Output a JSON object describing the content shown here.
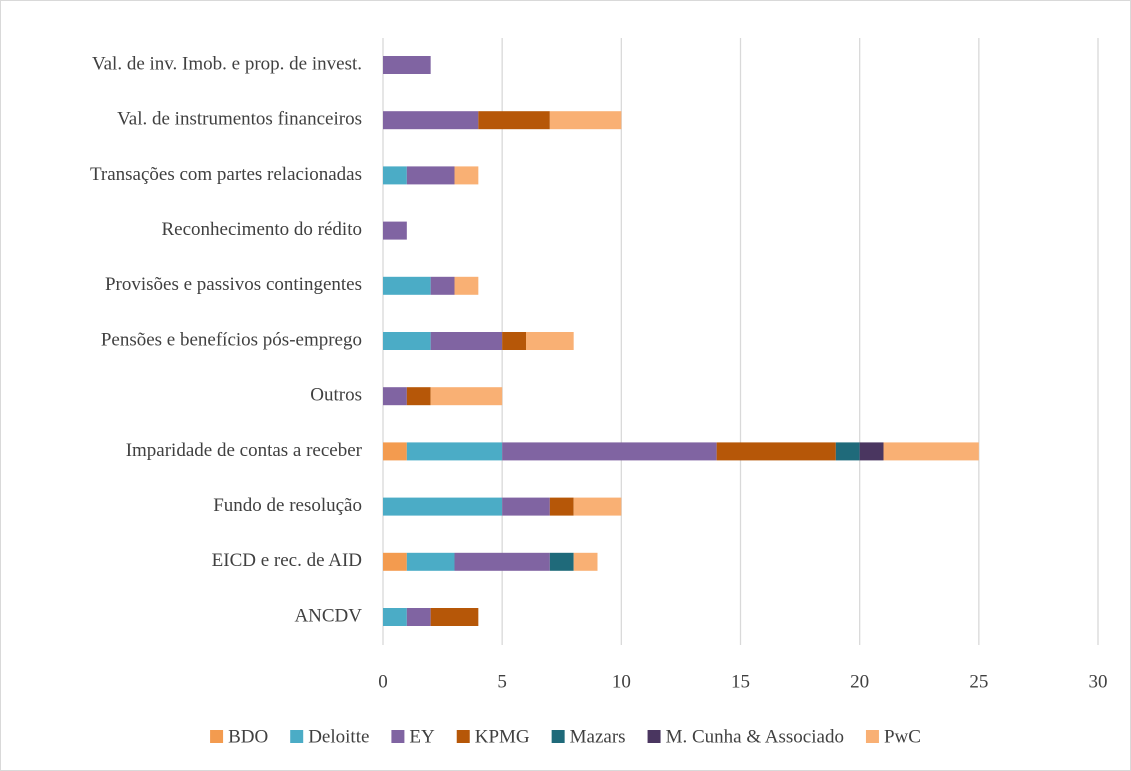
{
  "chart_data": {
    "type": "stacked_barh",
    "categories": [
      "Val. de inv. Imob. e prop. de invest.",
      "Val. de instrumentos financeiros",
      "Transações com partes relacionadas",
      "Reconhecimento do rédito",
      "Provisões e passivos contingentes",
      "Pensões e benefícios pós-emprego",
      "Outros",
      "Imparidade de contas a receber",
      "Fundo de resolução",
      "EICD e rec. de AID",
      "ANCDV"
    ],
    "series": [
      {
        "name": "BDO",
        "color": "#f39b4f",
        "values": [
          0,
          0,
          0,
          0,
          0,
          0,
          0,
          1,
          0,
          1,
          0
        ]
      },
      {
        "name": "Deloitte",
        "color": "#4bacc6",
        "values": [
          0,
          0,
          1,
          0,
          2,
          2,
          0,
          4,
          5,
          2,
          1
        ]
      },
      {
        "name": "EY",
        "color": "#8064a2",
        "values": [
          2,
          4,
          2,
          1,
          1,
          3,
          1,
          9,
          2,
          4,
          1
        ]
      },
      {
        "name": "KPMG",
        "color": "#b65708",
        "values": [
          0,
          3,
          0,
          0,
          0,
          1,
          1,
          5,
          1,
          0,
          2
        ]
      },
      {
        "name": "Mazars",
        "color": "#1f6a7a",
        "values": [
          0,
          0,
          0,
          0,
          0,
          0,
          0,
          1,
          0,
          1,
          0
        ]
      },
      {
        "name": "M. Cunha & Associado",
        "color": "#4a3660",
        "values": [
          0,
          0,
          0,
          0,
          0,
          0,
          0,
          1,
          0,
          0,
          0
        ]
      },
      {
        "name": "PwC",
        "color": "#f9b074",
        "values": [
          0,
          3,
          1,
          0,
          1,
          2,
          3,
          4,
          2,
          1,
          0
        ]
      }
    ],
    "xlim": [
      0,
      30
    ],
    "xticks": [
      0,
      5,
      10,
      15,
      20,
      25,
      30
    ],
    "grid": true,
    "legend": "bottom"
  }
}
